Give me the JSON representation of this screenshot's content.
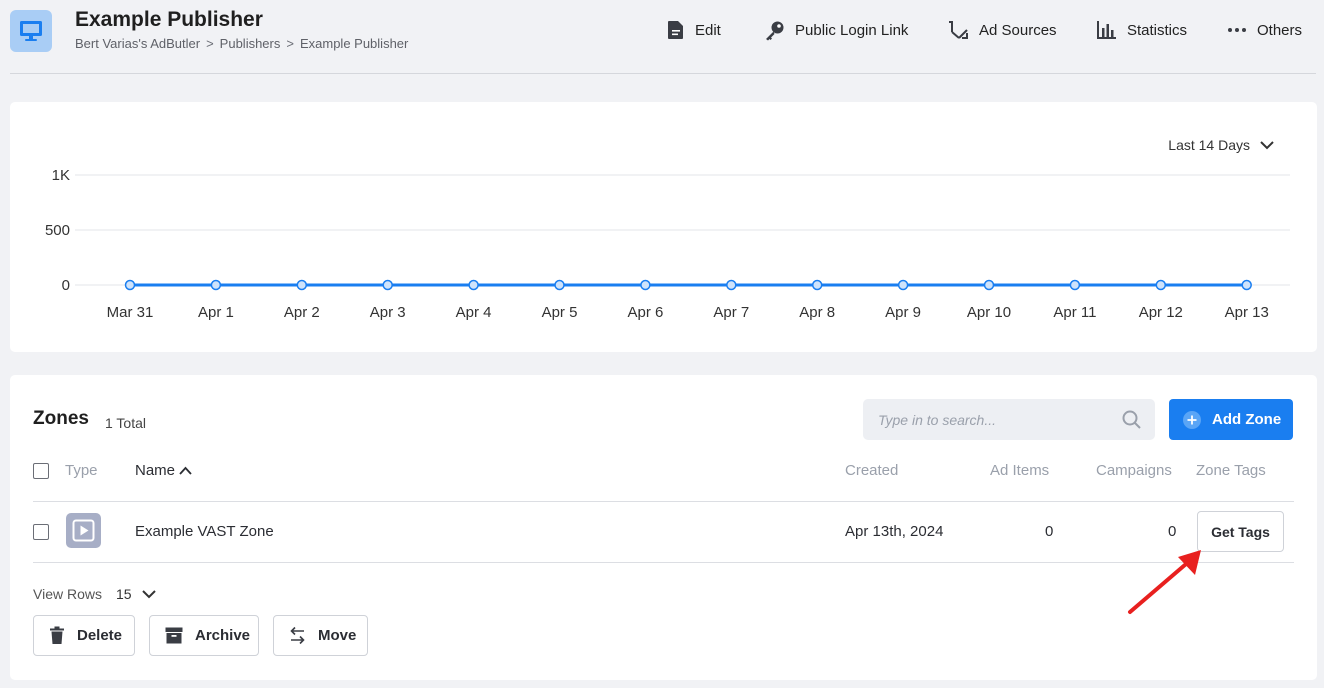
{
  "header": {
    "title": "Example Publisher",
    "breadcrumbs": [
      "Bert Varias's AdButler",
      "Publishers",
      "Example Publisher"
    ],
    "breadcrumb_sep": ">",
    "nav": {
      "edit": "Edit",
      "public_login": "Public Login Link",
      "ad_sources": "Ad Sources",
      "statistics": "Statistics",
      "others": "Others"
    }
  },
  "chart_controls": {
    "range": "Last 14 Days"
  },
  "chart_data": {
    "type": "line",
    "title": "",
    "xlabel": "",
    "ylabel": "",
    "categories": [
      "Mar 31",
      "Apr 1",
      "Apr 2",
      "Apr 3",
      "Apr 4",
      "Apr 5",
      "Apr 6",
      "Apr 7",
      "Apr 8",
      "Apr 9",
      "Apr 10",
      "Apr 11",
      "Apr 12",
      "Apr 13"
    ],
    "series": [
      {
        "values": [
          0,
          0,
          0,
          0,
          0,
          0,
          0,
          0,
          0,
          0,
          0,
          0,
          0,
          0
        ],
        "color": "#1a7ef0"
      }
    ],
    "ylim": [
      0,
      1000
    ],
    "yticks": [
      0,
      500,
      1000
    ],
    "ytick_labels": [
      "0",
      "500",
      "1K"
    ],
    "grid": true
  },
  "zones": {
    "title": "Zones",
    "total": "1 Total",
    "search_placeholder": "Type in to search...",
    "add_button": "Add Zone",
    "columns": {
      "type": "Type",
      "name": "Name",
      "created": "Created",
      "ad_items": "Ad Items",
      "campaigns": "Campaigns",
      "zone_tags": "Zone Tags"
    },
    "rows": [
      {
        "name": "Example VAST Zone",
        "created": "Apr 13th, 2024",
        "ad_items": "0",
        "campaigns": "0",
        "tags_button": "Get Tags",
        "type_icon": "video-play-icon"
      }
    ],
    "view_rows_label": "View Rows",
    "view_rows_value": "15",
    "actions": {
      "delete": "Delete",
      "archive": "Archive",
      "move": "Move"
    }
  },
  "colors": {
    "accent": "#1a7ef0",
    "annotation_arrow": "#e8201f"
  }
}
